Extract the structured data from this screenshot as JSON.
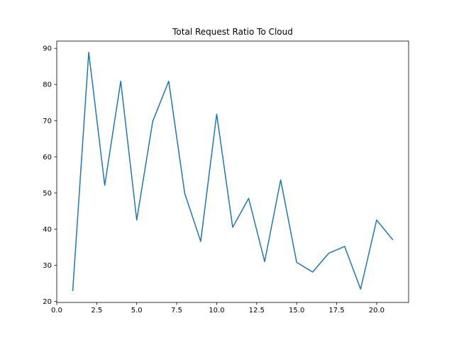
{
  "chart_data": {
    "type": "line",
    "title": "Total Request Ratio To Cloud",
    "xlabel": "",
    "ylabel": "",
    "xlim": [
      0.0,
      22.0
    ],
    "ylim": [
      19.7,
      92.0
    ],
    "grid": false,
    "x_ticks": [
      0.0,
      2.5,
      5.0,
      7.5,
      10.0,
      12.5,
      15.0,
      17.5,
      20.0
    ],
    "x_tick_labels": [
      "0.0",
      "2.5",
      "5.0",
      "7.5",
      "10.0",
      "12.5",
      "15.0",
      "17.5",
      "20.0"
    ],
    "y_ticks": [
      20,
      30,
      40,
      50,
      60,
      70,
      80,
      90
    ],
    "y_tick_labels": [
      "20",
      "30",
      "40",
      "50",
      "60",
      "70",
      "80",
      "90"
    ],
    "line_color": "#1f77b4",
    "series": [
      {
        "x": [
          1,
          2,
          3,
          4,
          5,
          6,
          7,
          8,
          9,
          10,
          11,
          12,
          13,
          14,
          15,
          16,
          17,
          18,
          19,
          20,
          21
        ],
        "values": [
          23.0,
          88.9,
          52.1,
          80.9,
          42.5,
          69.8,
          80.9,
          49.9,
          36.6,
          71.8,
          40.5,
          48.5,
          31.0,
          53.6,
          30.8,
          28.1,
          33.3,
          35.2,
          23.4,
          42.5,
          37.1
        ]
      }
    ]
  }
}
